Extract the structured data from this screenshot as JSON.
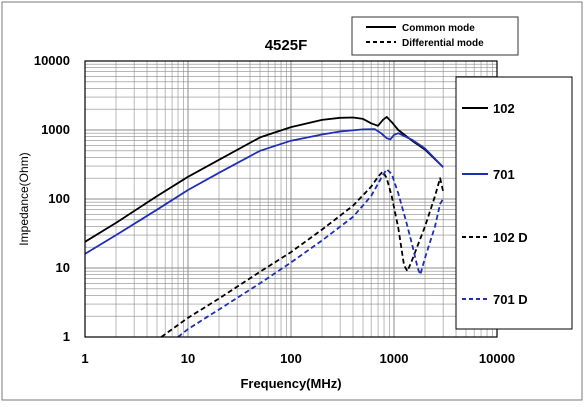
{
  "chart_data": {
    "type": "line",
    "title": "4525F",
    "xlabel": "Frequency(MHz)",
    "ylabel": "Impedance(Ohm)",
    "xscale": "log",
    "yscale": "log",
    "xlim": [
      1,
      10000
    ],
    "ylim": [
      1,
      10000
    ],
    "x_ticks": [
      "1",
      "10",
      "100",
      "1000",
      "10000"
    ],
    "y_ticks": [
      "1",
      "10",
      "100",
      "1000",
      "10000"
    ],
    "grid": true,
    "mode_legend": [
      {
        "label": "Common mode",
        "style": "solid"
      },
      {
        "label": "Differential mode",
        "style": "dashed"
      }
    ],
    "series": [
      {
        "name": "102",
        "color": "#000000",
        "style": "solid",
        "points": [
          [
            1,
            24
          ],
          [
            2,
            45
          ],
          [
            5,
            110
          ],
          [
            10,
            210
          ],
          [
            20,
            370
          ],
          [
            50,
            780
          ],
          [
            100,
            1100
          ],
          [
            200,
            1400
          ],
          [
            300,
            1500
          ],
          [
            400,
            1520
          ],
          [
            500,
            1450
          ],
          [
            600,
            1250
          ],
          [
            700,
            1150
          ],
          [
            780,
            1400
          ],
          [
            850,
            1550
          ],
          [
            950,
            1300
          ],
          [
            1100,
            1000
          ],
          [
            1500,
            700
          ],
          [
            2000,
            520
          ],
          [
            3000,
            290
          ]
        ]
      },
      {
        "name": "701",
        "color": "#1f2fb5",
        "style": "solid",
        "points": [
          [
            1,
            16
          ],
          [
            2,
            30
          ],
          [
            5,
            70
          ],
          [
            10,
            135
          ],
          [
            20,
            240
          ],
          [
            50,
            500
          ],
          [
            100,
            700
          ],
          [
            200,
            860
          ],
          [
            300,
            950
          ],
          [
            500,
            1020
          ],
          [
            650,
            1030
          ],
          [
            750,
            900
          ],
          [
            850,
            760
          ],
          [
            920,
            730
          ],
          [
            1000,
            850
          ],
          [
            1100,
            900
          ],
          [
            1500,
            720
          ],
          [
            2000,
            540
          ],
          [
            3000,
            290
          ]
        ]
      },
      {
        "name": "102 D",
        "color": "#000000",
        "style": "dashed",
        "points": [
          [
            5.5,
            1
          ],
          [
            10,
            1.9
          ],
          [
            20,
            3.6
          ],
          [
            50,
            8.8
          ],
          [
            100,
            17
          ],
          [
            200,
            36
          ],
          [
            400,
            80
          ],
          [
            600,
            150
          ],
          [
            700,
            210
          ],
          [
            780,
            250
          ],
          [
            850,
            200
          ],
          [
            950,
            110
          ],
          [
            1100,
            38
          ],
          [
            1250,
            11
          ],
          [
            1350,
            9
          ],
          [
            1500,
            13
          ],
          [
            2000,
            40
          ],
          [
            2500,
            110
          ],
          [
            2800,
            200
          ],
          [
            3000,
            130
          ]
        ]
      },
      {
        "name": "701 D",
        "color": "#1f2fb5",
        "style": "dashed",
        "points": [
          [
            8,
            1
          ],
          [
            10,
            1.3
          ],
          [
            20,
            2.5
          ],
          [
            50,
            6
          ],
          [
            100,
            12
          ],
          [
            200,
            25
          ],
          [
            400,
            55
          ],
          [
            600,
            110
          ],
          [
            750,
            200
          ],
          [
            850,
            270
          ],
          [
            950,
            230
          ],
          [
            1100,
            120
          ],
          [
            1300,
            50
          ],
          [
            1500,
            22
          ],
          [
            1700,
            10
          ],
          [
            1800,
            8
          ],
          [
            2000,
            14
          ],
          [
            2500,
            40
          ],
          [
            2800,
            85
          ],
          [
            3000,
            100
          ]
        ]
      }
    ]
  }
}
